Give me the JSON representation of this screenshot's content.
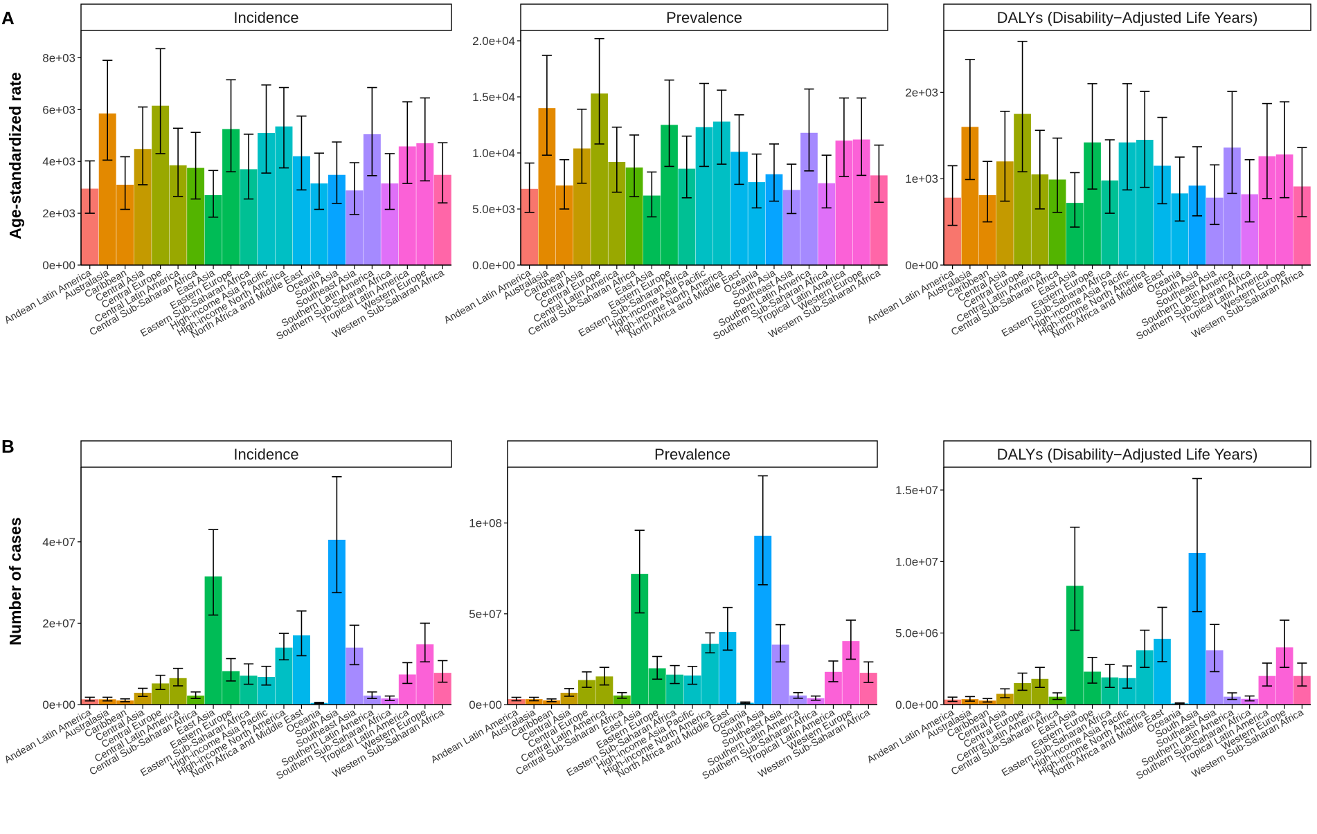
{
  "figure": {
    "panel_labels": [
      "A",
      "B"
    ],
    "row_ylabels": [
      "Age-standardized rate",
      "Number of cases"
    ]
  },
  "region_colors": [
    "#F8766D",
    "#E38900",
    "#C49A00",
    "#99A800",
    "#53B400",
    "#00BC56",
    "#00C094",
    "#00BFC4",
    "#00B6EB",
    "#06A4FF",
    "#A58AFF",
    "#DF70F8",
    "#FB61D7",
    "#FF66A8"
  ],
  "chart_data": [
    {
      "type": "bar",
      "row": 0,
      "col": 0,
      "title": "Incidence",
      "categories": [
        "Andean Latin America",
        "Australasia",
        "Caribbean",
        "Central Asia",
        "Central Europe",
        "Central Latin America",
        "Central Sub-Saharan Africa",
        "East Asia",
        "Eastern Europe",
        "Eastern Sub-Saharan Africa",
        "High-income Asia Pacific",
        "High-income North America",
        "North Africa and Middle East",
        "Oceania",
        "South Asia",
        "Southeast Asia",
        "Southern Latin America",
        "Southern Sub-Saharan Africa",
        "Tropical Latin America",
        "Western Europe",
        "Western Sub-Saharan Africa"
      ],
      "values": [
        2950,
        5850,
        3100,
        4480,
        6150,
        3850,
        3750,
        2700,
        5250,
        3700,
        5100,
        5350,
        4200,
        3150,
        3480,
        2880,
        5050,
        3150,
        4580,
        4700,
        3480
      ],
      "lower": [
        2000,
        4050,
        2150,
        3100,
        4300,
        2650,
        2550,
        1850,
        3600,
        2550,
        3550,
        3750,
        2900,
        2150,
        2380,
        1950,
        3450,
        2150,
        3150,
        3250,
        2400
      ],
      "upper": [
        4020,
        7900,
        4180,
        6100,
        8350,
        5280,
        5120,
        3650,
        7150,
        5050,
        6950,
        6850,
        5750,
        4320,
        4750,
        3950,
        6850,
        4300,
        6300,
        6450,
        4720
      ],
      "ylim": [
        0,
        9000
      ],
      "yticks": [
        0,
        2000,
        4000,
        6000,
        8000
      ],
      "ytick_labels": [
        "0e+00",
        "2e+03",
        "4e+03",
        "6e+03",
        "8e+03"
      ],
      "ylabel": "Age-standardized rate"
    },
    {
      "type": "bar",
      "row": 0,
      "col": 1,
      "title": "Prevalence",
      "categories": [
        "Andean Latin America",
        "Australasia",
        "Caribbean",
        "Central Asia",
        "Central Europe",
        "Central Latin America",
        "Central Sub-Saharan Africa",
        "East Asia",
        "Eastern Europe",
        "Eastern Sub-Saharan Africa",
        "High-income Asia Pacific",
        "High-income North America",
        "North Africa and Middle East",
        "Oceania",
        "South Asia",
        "Southeast Asia",
        "Southern Latin America",
        "Southern Sub-Saharan Africa",
        "Tropical Latin America",
        "Western Europe",
        "Western Sub-Saharan Africa"
      ],
      "values": [
        6800,
        14000,
        7100,
        10400,
        15300,
        9200,
        8700,
        6200,
        12500,
        8600,
        12300,
        12800,
        10100,
        7400,
        8100,
        6700,
        11800,
        7300,
        11100,
        11200,
        8000
      ],
      "lower": [
        4700,
        9800,
        5000,
        7300,
        10800,
        6500,
        6100,
        4300,
        8800,
        6000,
        8800,
        9000,
        7200,
        5100,
        5700,
        4600,
        8400,
        5100,
        7900,
        8000,
        5600
      ],
      "upper": [
        9100,
        18700,
        9400,
        13900,
        20200,
        12300,
        11600,
        8300,
        16500,
        11500,
        16200,
        15600,
        13400,
        9900,
        10800,
        9000,
        15700,
        9800,
        14900,
        14900,
        10700
      ],
      "ylim": [
        0,
        20800
      ],
      "yticks": [
        0,
        5000,
        10000,
        15000,
        20000
      ],
      "ytick_labels": [
        "0.0e+00",
        "5.0e+03",
        "1.0e+04",
        "1.5e+04",
        "2.0e+04"
      ],
      "ylabel": ""
    },
    {
      "type": "bar",
      "row": 0,
      "col": 2,
      "title": "DALYs (Disability−Adjusted Life Years)",
      "categories": [
        "Andean Latin America",
        "Australasia",
        "Caribbean",
        "Central Asia",
        "Central Europe",
        "Central Latin America",
        "Central Sub-Saharan Africa",
        "East Asia",
        "Eastern Europe",
        "Eastern Sub-Saharan Africa",
        "High-income Asia Pacific",
        "High-income North America",
        "North Africa and Middle East",
        "Oceania",
        "South Asia",
        "Southeast Asia",
        "Southern Latin America",
        "Southern Sub-Saharan Africa",
        "Tropical Latin America",
        "Western Europe",
        "Western Sub-Saharan Africa"
      ],
      "values": [
        780,
        1600,
        810,
        1200,
        1750,
        1050,
        990,
        720,
        1420,
        980,
        1420,
        1450,
        1150,
        830,
        920,
        780,
        1360,
        820,
        1260,
        1280,
        910
      ],
      "lower": [
        460,
        990,
        500,
        740,
        1080,
        650,
        610,
        440,
        880,
        600,
        870,
        900,
        710,
        510,
        570,
        470,
        830,
        500,
        770,
        780,
        560
      ],
      "upper": [
        1150,
        2380,
        1200,
        1780,
        2590,
        1560,
        1470,
        1070,
        2100,
        1450,
        2100,
        2010,
        1710,
        1250,
        1370,
        1160,
        2010,
        1220,
        1870,
        1890,
        1360
      ],
      "ylim": [
        0,
        2700
      ],
      "yticks": [
        0,
        1000,
        2000
      ],
      "ytick_labels": [
        "0e+00",
        "1e+03",
        "2e+03"
      ],
      "ylabel": ""
    },
    {
      "type": "bar",
      "row": 1,
      "col": 0,
      "title": "Incidence",
      "categories": [
        "Andean Latin America",
        "Australasia",
        "Caribbean",
        "Central Asia",
        "Central Europe",
        "Central Latin America",
        "Central Sub-Saharan Africa",
        "East Asia",
        "Eastern Europe",
        "Eastern Sub-Saharan Africa",
        "High-income Asia Pacific",
        "High-income North America",
        "North Africa and Middle East",
        "Oceania",
        "South Asia",
        "Southeast Asia",
        "Southern Latin America",
        "Southern Sub-Saharan Africa",
        "Tropical Latin America",
        "Western Europe",
        "Western Sub-Saharan Africa"
      ],
      "values": [
        1300000,
        1300000,
        1000000,
        2900000,
        5200000,
        6500000,
        2200000,
        31500000,
        8200000,
        7100000,
        6800000,
        14000000,
        17000000,
        400000,
        40500000,
        14000000,
        2200000,
        1500000,
        7400000,
        14800000,
        7800000
      ],
      "lower": [
        900000,
        900000,
        700000,
        2000000,
        3700000,
        4600000,
        1500000,
        22000000,
        5800000,
        5000000,
        4800000,
        11000000,
        12000000,
        250000,
        27500000,
        9800000,
        1500000,
        1000000,
        5200000,
        10500000,
        5500000
      ],
      "upper": [
        1800000,
        1800000,
        1400000,
        4000000,
        7200000,
        8900000,
        3100000,
        43000000,
        11300000,
        10000000,
        9400000,
        17500000,
        23000000,
        550000,
        56000000,
        19500000,
        3100000,
        2100000,
        10300000,
        20000000,
        10800000
      ],
      "ylim": [
        0,
        58000000
      ],
      "yticks": [
        0,
        20000000,
        40000000
      ],
      "ytick_labels": [
        "0e+00",
        "2e+07",
        "4e+07"
      ],
      "ylabel": "Number of cases"
    },
    {
      "type": "bar",
      "row": 1,
      "col": 1,
      "title": "Prevalence",
      "categories": [
        "Andean Latin America",
        "Australasia",
        "Caribbean",
        "Central Asia",
        "Central Europe",
        "Central Latin America",
        "Central Sub-Saharan Africa",
        "East Asia",
        "Eastern Europe",
        "Eastern Sub-Saharan Africa",
        "High-income Asia Pacific",
        "High-income North America",
        "North Africa and Middle East",
        "Oceania",
        "South Asia",
        "Southeast Asia",
        "Southern Latin America",
        "Southern Sub-Saharan Africa",
        "Tropical Latin America",
        "Western Europe",
        "Western Sub-Saharan Africa"
      ],
      "values": [
        3000000,
        3000000,
        2300000,
        6500000,
        13500000,
        15500000,
        5000000,
        72000000,
        20000000,
        16500000,
        16000000,
        33500000,
        40000000,
        1000000,
        93000000,
        33000000,
        5000000,
        3500000,
        18000000,
        35000000,
        17500000
      ],
      "lower": [
        2100000,
        2100000,
        1600000,
        4600000,
        9500000,
        10800000,
        3500000,
        50500000,
        14000000,
        11600000,
        11200000,
        28500000,
        30000000,
        700000,
        66000000,
        23500000,
        3500000,
        2400000,
        12600000,
        25000000,
        12200000
      ],
      "upper": [
        4000000,
        4000000,
        3100000,
        8800000,
        18000000,
        20500000,
        6600000,
        96000000,
        26500000,
        21500000,
        21000000,
        39500000,
        53500000,
        1400000,
        126000000,
        44000000,
        6600000,
        4700000,
        24000000,
        46500000,
        23500000
      ],
      "ylim": [
        0,
        130000000
      ],
      "yticks": [
        0,
        50000000,
        100000000
      ],
      "ytick_labels": [
        "0e+00",
        "5e+07",
        "1e+08"
      ],
      "ylabel": ""
    },
    {
      "type": "bar",
      "row": 1,
      "col": 2,
      "title": "DALYs (Disability−Adjusted Life Years)",
      "categories": [
        "Andean Latin America",
        "Australasia",
        "Caribbean",
        "Central Asia",
        "Central Europe",
        "Central Latin America",
        "Central Sub-Saharan Africa",
        "East Asia",
        "Eastern Europe",
        "Eastern Sub-Saharan Africa",
        "High-income Asia Pacific",
        "High-income North America",
        "North Africa and Middle East",
        "Oceania",
        "South Asia",
        "Southeast Asia",
        "Southern Latin America",
        "Southern Sub-Saharan Africa",
        "Tropical Latin America",
        "Western Europe",
        "Western Sub-Saharan Africa"
      ],
      "values": [
        350000,
        380000,
        280000,
        750000,
        1500000,
        1800000,
        550000,
        8300000,
        2300000,
        1900000,
        1850000,
        3800000,
        4600000,
        80000,
        10600000,
        3800000,
        550000,
        400000,
        2000000,
        4000000,
        2000000
      ],
      "lower": [
        220000,
        240000,
        180000,
        480000,
        1000000,
        1200000,
        360000,
        5200000,
        1500000,
        1200000,
        1150000,
        2600000,
        3000000,
        50000,
        6500000,
        2300000,
        360000,
        260000,
        1300000,
        2600000,
        1300000
      ],
      "upper": [
        520000,
        560000,
        420000,
        1100000,
        2200000,
        2600000,
        820000,
        12400000,
        3300000,
        2800000,
        2700000,
        5200000,
        6800000,
        120000,
        15800000,
        5600000,
        820000,
        600000,
        2900000,
        5900000,
        2900000
      ],
      "ylim": [
        0,
        16500000
      ],
      "yticks": [
        0,
        5000000,
        10000000,
        15000000
      ],
      "ytick_labels": [
        "0.0e+00",
        "5.0e+06",
        "1.0e+07",
        "1.5e+07"
      ],
      "ylabel": ""
    }
  ]
}
